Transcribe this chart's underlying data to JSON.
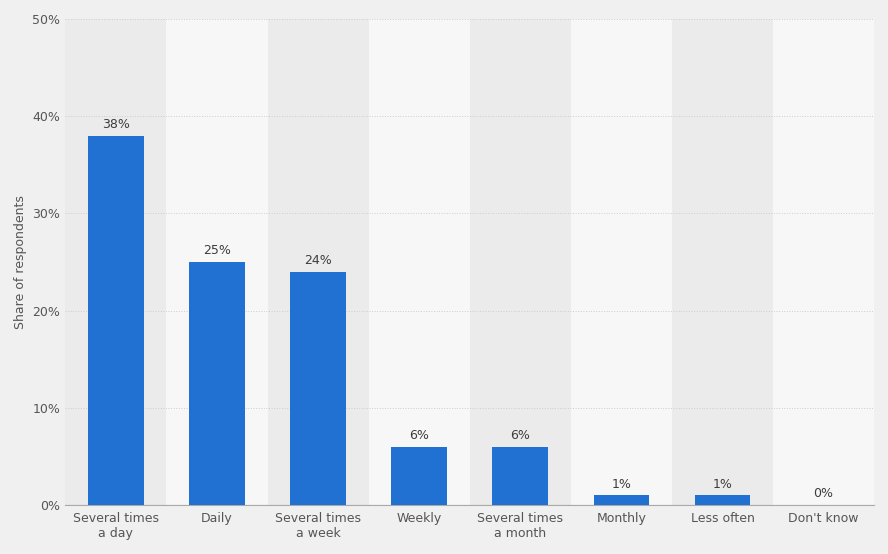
{
  "categories": [
    "Several times\na day",
    "Daily",
    "Several times\na week",
    "Weekly",
    "Several times\na month",
    "Monthly",
    "Less often",
    "Don't know"
  ],
  "values": [
    38,
    25,
    24,
    6,
    6,
    1,
    1,
    0
  ],
  "bar_color": "#2171d3",
  "ylabel": "Share of respondents",
  "ylim": [
    0,
    50
  ],
  "yticks": [
    0,
    10,
    20,
    30,
    40,
    50
  ],
  "ytick_labels": [
    "0%",
    "10%",
    "20%",
    "30%",
    "40%",
    "50%"
  ],
  "bar_label_fontsize": 9,
  "ylabel_fontsize": 9,
  "tick_fontsize": 9,
  "background_color": "#f0f0f0",
  "plot_background_color": "#f0f0f0",
  "stripe_color_odd": "#ebebeb",
  "stripe_color_even": "#f7f7f7",
  "grid_color": "#cccccc",
  "bar_width": 0.55,
  "label_color": "#3d3d3d"
}
